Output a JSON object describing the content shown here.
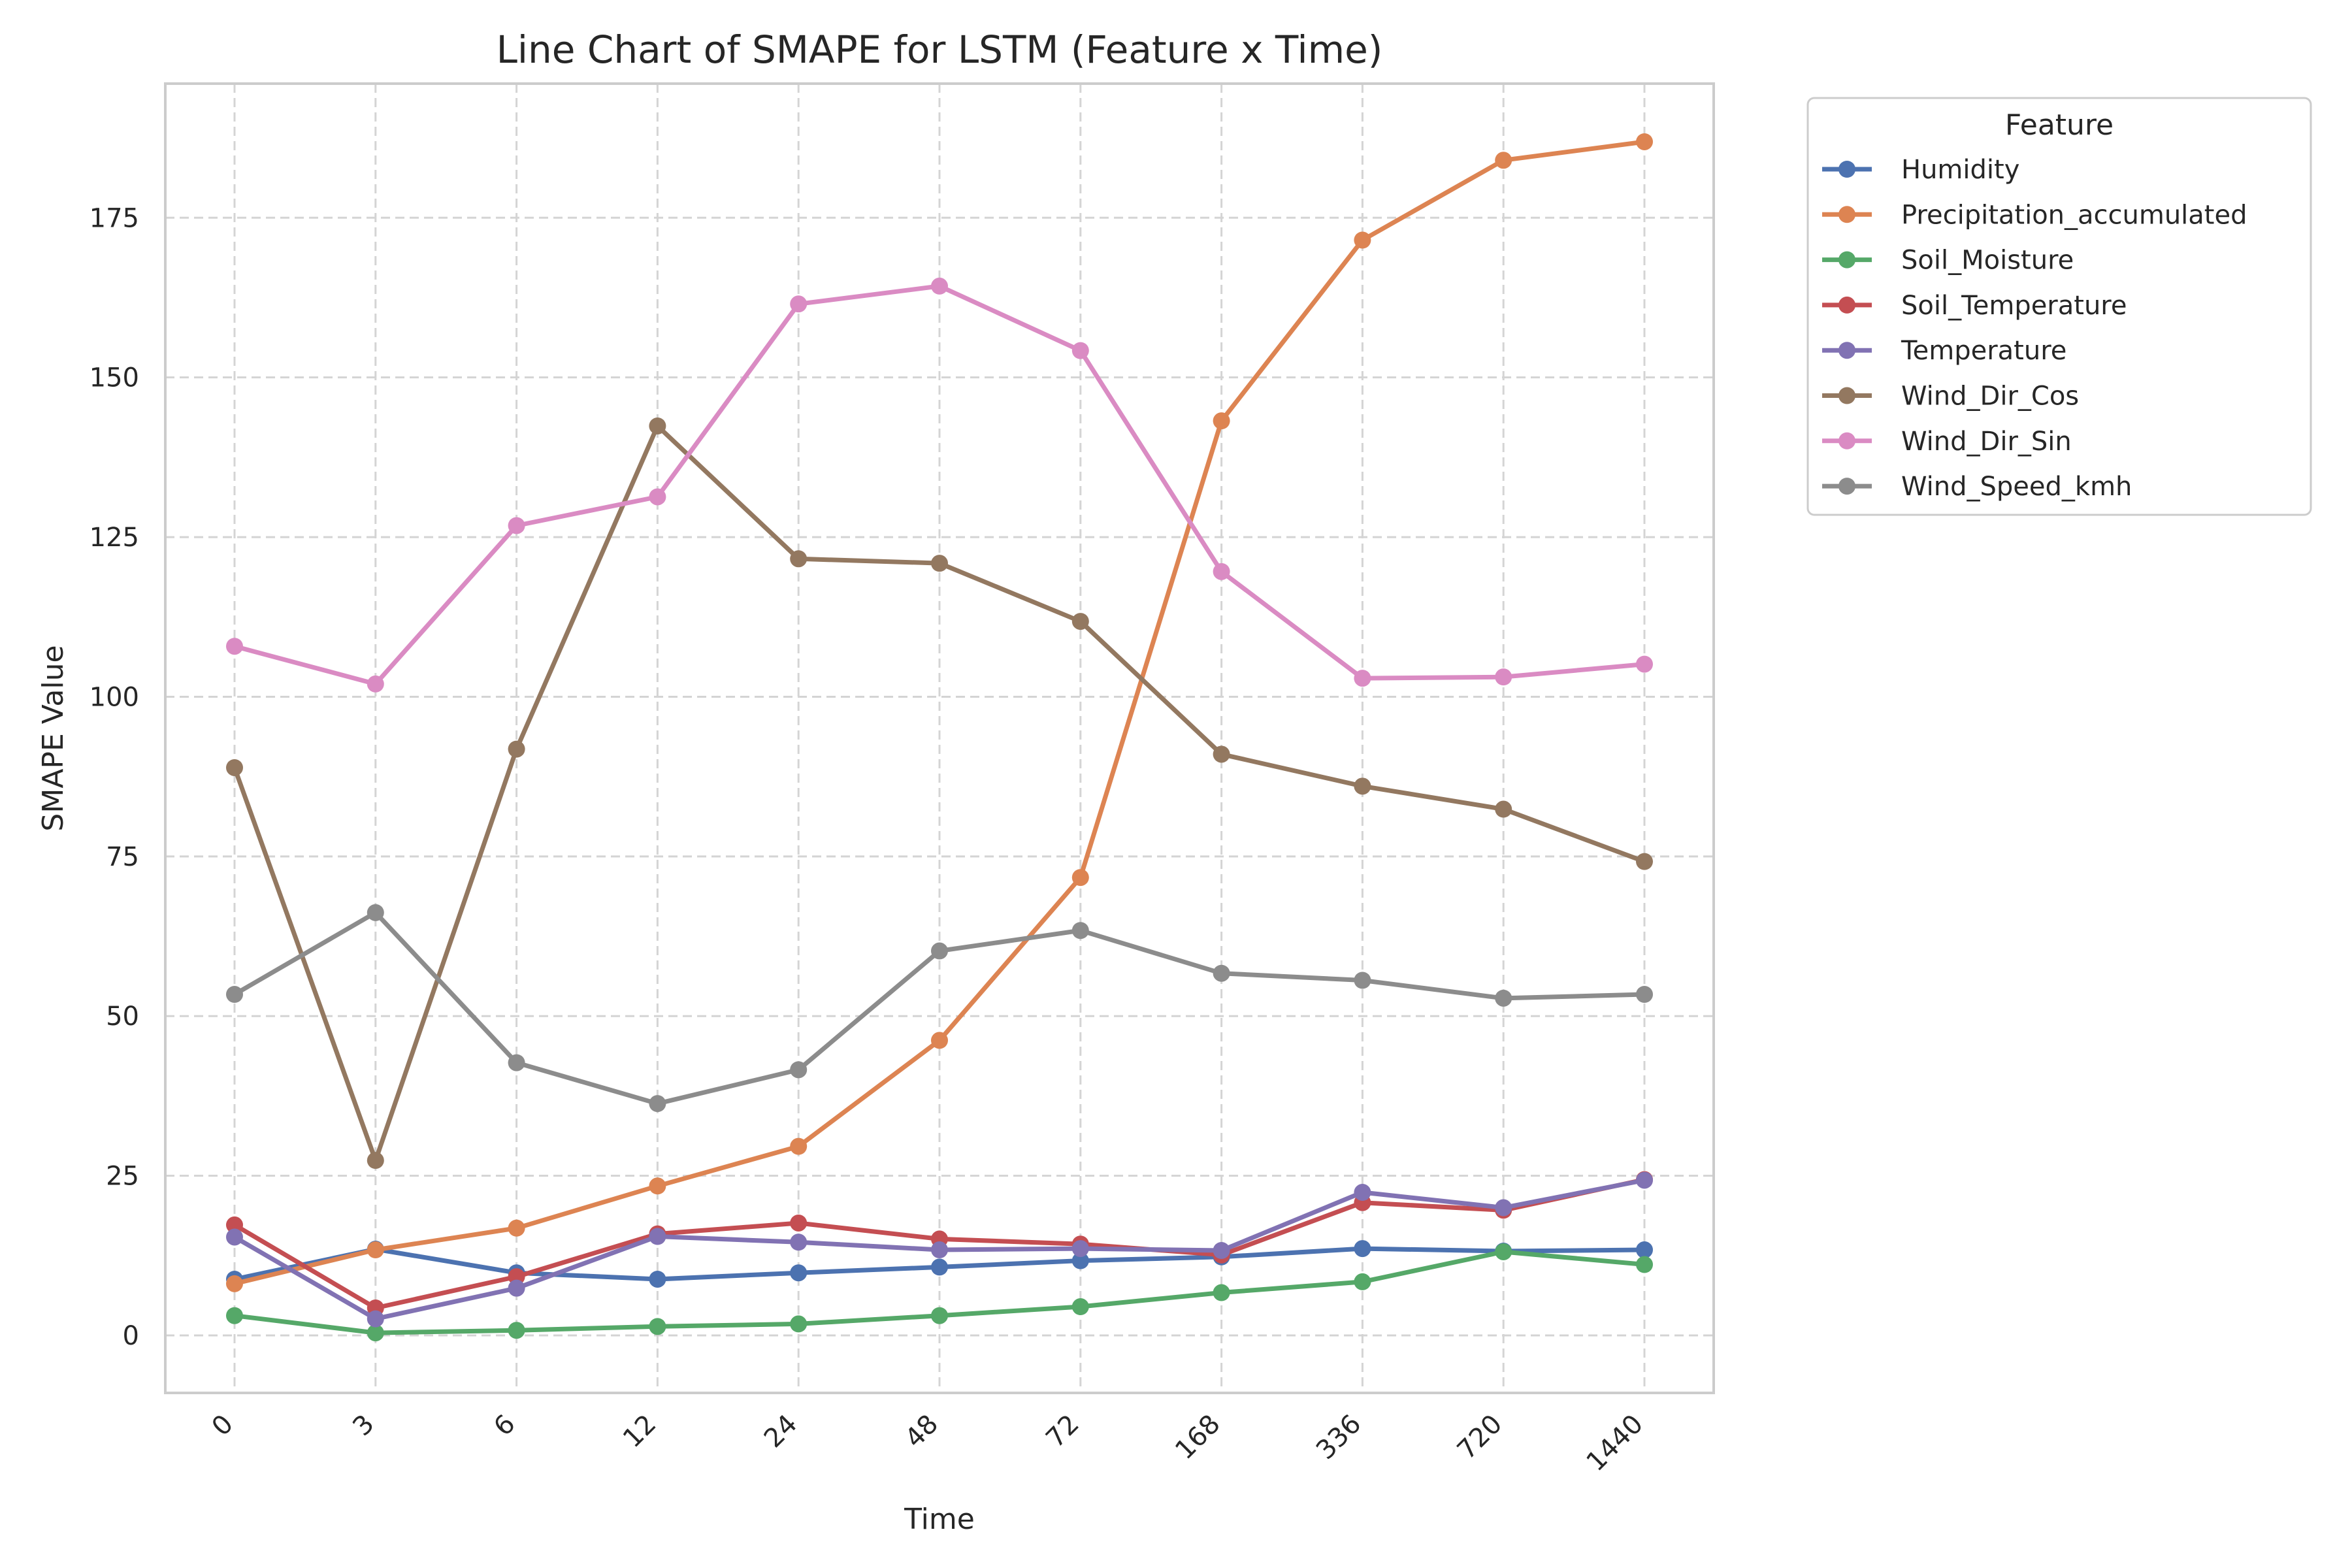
{
  "chart_data": {
    "type": "line",
    "title": "Line Chart of SMAPE for LSTM (Feature x Time)",
    "xlabel": "Time",
    "ylabel": "SMAPE Value",
    "categories": [
      "0",
      "3",
      "6",
      "12",
      "24",
      "48",
      "72",
      "168",
      "336",
      "720",
      "1440"
    ],
    "ylim": [
      -9,
      196
    ],
    "yticks": [
      0,
      25,
      50,
      75,
      100,
      125,
      150,
      175
    ],
    "grid": true,
    "grid_style": "dashed",
    "markers": "circle",
    "legend": {
      "title": "Feature",
      "placement": "outside-top-right"
    },
    "series": [
      {
        "name": "Humidity",
        "color": "#4c72b0",
        "values": [
          8.8,
          13.5,
          9.8,
          8.8,
          9.8,
          10.7,
          11.7,
          12.3,
          13.6,
          13.2,
          13.4
        ]
      },
      {
        "name": "Precipitation_accumulated",
        "color": "#dd8452",
        "values": [
          8.1,
          13.4,
          16.8,
          23.4,
          29.6,
          46.2,
          71.7,
          143.2,
          171.5,
          184.0,
          186.9
        ]
      },
      {
        "name": "Soil_Moisture",
        "color": "#55a868",
        "values": [
          3.1,
          0.4,
          0.8,
          1.4,
          1.8,
          3.1,
          4.5,
          6.7,
          8.4,
          13.1,
          11.1
        ]
      },
      {
        "name": "Soil_Temperature",
        "color": "#c44e52",
        "values": [
          17.3,
          4.3,
          9.2,
          15.9,
          17.6,
          15.1,
          14.3,
          12.6,
          20.8,
          19.6,
          24.4
        ]
      },
      {
        "name": "Temperature",
        "color": "#8172b3",
        "values": [
          15.4,
          2.6,
          7.4,
          15.5,
          14.6,
          13.4,
          13.6,
          13.3,
          22.4,
          20.0,
          24.3
        ]
      },
      {
        "name": "Wind_Dir_Cos",
        "color": "#937860",
        "values": [
          88.9,
          27.4,
          91.8,
          142.4,
          121.6,
          120.9,
          111.8,
          91.0,
          86.0,
          82.4,
          74.2
        ]
      },
      {
        "name": "Wind_Dir_Sin",
        "color": "#da8bc3",
        "values": [
          107.9,
          102.0,
          126.8,
          131.3,
          161.5,
          164.3,
          154.2,
          119.6,
          102.9,
          103.1,
          105.1
        ]
      },
      {
        "name": "Wind_Speed_kmh",
        "color": "#8c8c8c",
        "values": [
          53.4,
          66.2,
          42.7,
          36.3,
          41.6,
          60.2,
          63.4,
          56.7,
          55.6,
          52.8,
          53.4
        ]
      }
    ]
  }
}
